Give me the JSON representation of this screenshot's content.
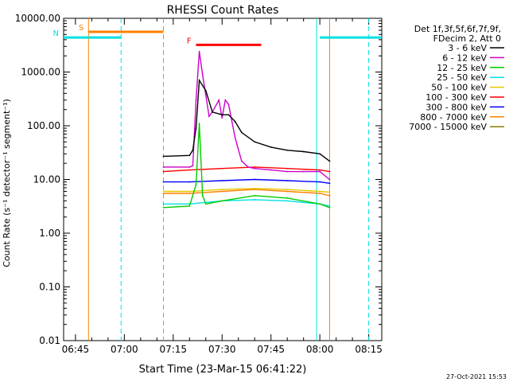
{
  "chart_data": {
    "type": "line",
    "title": "RHESSI Count Rates",
    "xlabel": "Start Time (23-Mar-15 06:41:22)",
    "ylabel": "Count Rate (s⁻¹ detector⁻¹ segment⁻¹)",
    "y_scale": "log",
    "ylim": [
      0.01,
      10000
    ],
    "xlim": [
      "06:41:22",
      "08:19:00"
    ],
    "x_ticks": [
      "06:45",
      "07:00",
      "07:15",
      "07:30",
      "07:45",
      "08:00",
      "08:15"
    ],
    "y_ticks": [
      "10000.00",
      "1000.00",
      "100.00",
      "10.00",
      "1.00",
      "0.10",
      "0.01"
    ],
    "legend_header": [
      "Det 1f,3f,5f,6f,7f,9f,",
      "FDecim 2, Att 0"
    ],
    "legend_position": "right",
    "footer_date": "27-Oct-2021 15:53",
    "series": [
      {
        "name": "3 - 6 keV",
        "color": "#000000",
        "x": [
          "07:12",
          "07:20",
          "07:21",
          "07:22",
          "07:23",
          "07:25",
          "07:27",
          "07:30",
          "07:32",
          "07:34",
          "07:36",
          "07:40",
          "07:45",
          "07:50",
          "07:55",
          "08:00",
          "08:03"
        ],
        "values": [
          27,
          28,
          35,
          90,
          700,
          450,
          180,
          160,
          160,
          120,
          75,
          50,
          40,
          35,
          33,
          30,
          22
        ]
      },
      {
        "name": "6 - 12 keV",
        "color": "#cc00cc",
        "x": [
          "07:12",
          "07:20",
          "07:21",
          "07:22",
          "07:23",
          "07:24",
          "07:26",
          "07:27",
          "07:29",
          "07:30",
          "07:31",
          "07:32",
          "07:34",
          "07:36",
          "07:38",
          "07:40",
          "07:45",
          "07:50",
          "07:55",
          "08:00",
          "08:03"
        ],
        "values": [
          17,
          17,
          18,
          300,
          2400,
          900,
          150,
          180,
          300,
          140,
          300,
          250,
          60,
          22,
          17,
          16,
          15,
          14,
          14,
          14,
          10
        ]
      },
      {
        "name": "12 - 25 keV",
        "color": "#00cc00",
        "x": [
          "07:12",
          "07:20",
          "07:22",
          "07:23",
          "07:24",
          "07:25",
          "07:30",
          "07:40",
          "07:50",
          "08:00",
          "08:03"
        ],
        "values": [
          3,
          3.2,
          8,
          110,
          5,
          3.5,
          4,
          5,
          4.5,
          3.5,
          3
        ]
      },
      {
        "name": "25 - 50 keV",
        "color": "#00e0e0",
        "x": [
          "07:12",
          "07:20",
          "07:30",
          "07:40",
          "07:50",
          "08:00",
          "08:03"
        ],
        "values": [
          3.5,
          3.5,
          4,
          4.2,
          4,
          3.5,
          3.2
        ]
      },
      {
        "name": "50 - 100 keV",
        "color": "#e6c800",
        "x": [
          "07:12",
          "07:20",
          "07:30",
          "07:40",
          "07:50",
          "08:00",
          "08:03"
        ],
        "values": [
          6,
          6,
          6.5,
          6.8,
          6.5,
          6,
          5.8
        ]
      },
      {
        "name": "100 - 300 keV",
        "color": "#ff0000",
        "x": [
          "07:12",
          "07:20",
          "07:30",
          "07:40",
          "07:50",
          "08:00",
          "08:03"
        ],
        "values": [
          14,
          15,
          16,
          17,
          16,
          15,
          14
        ]
      },
      {
        "name": "300 - 800 keV",
        "color": "#0000ff",
        "x": [
          "07:12",
          "07:20",
          "07:30",
          "07:40",
          "07:50",
          "08:00",
          "08:03"
        ],
        "values": [
          9,
          9,
          9.5,
          10,
          9.5,
          9,
          8.5
        ]
      },
      {
        "name": "800 - 7000 keV",
        "color": "#ff8000",
        "x": [
          "07:12",
          "07:20",
          "07:30",
          "07:40",
          "07:50",
          "08:00",
          "08:03"
        ],
        "values": [
          5.5,
          5.5,
          6,
          6.5,
          6,
          5.5,
          5
        ]
      },
      {
        "name": "7000 - 15000 keV",
        "color": "#808000",
        "x": [],
        "values": []
      }
    ],
    "annotations": [
      {
        "label": "S",
        "color": "#ff8000",
        "x_start": "06:49",
        "x_end": "07:12",
        "y": 5600
      },
      {
        "label": "N",
        "color": "#00e0e0",
        "x_start": "06:41:22",
        "x_end": "06:59",
        "y": 4400
      },
      {
        "label": "F",
        "color": "#ff0000",
        "x_start": "07:22",
        "x_end": "07:42",
        "y": 3200
      },
      {
        "label": "",
        "color": "#00e0e0",
        "x_start": "08:00",
        "x_end": "08:19:00",
        "y": 4400
      }
    ],
    "vertical_markers": [
      {
        "x": "06:49",
        "color": "#ff8000",
        "style": "solid"
      },
      {
        "x": "06:59",
        "color": "#00e0e0",
        "style": "dashed"
      },
      {
        "x": "07:12",
        "color": "#ff8000",
        "style": "dashed"
      },
      {
        "x": "07:59",
        "color": "#00e0e0",
        "style": "solid"
      },
      {
        "x": "08:15",
        "color": "#00e0e0",
        "style": "dashed"
      },
      {
        "x": "08:03",
        "color": "#ff8000",
        "style": "solid"
      }
    ]
  }
}
